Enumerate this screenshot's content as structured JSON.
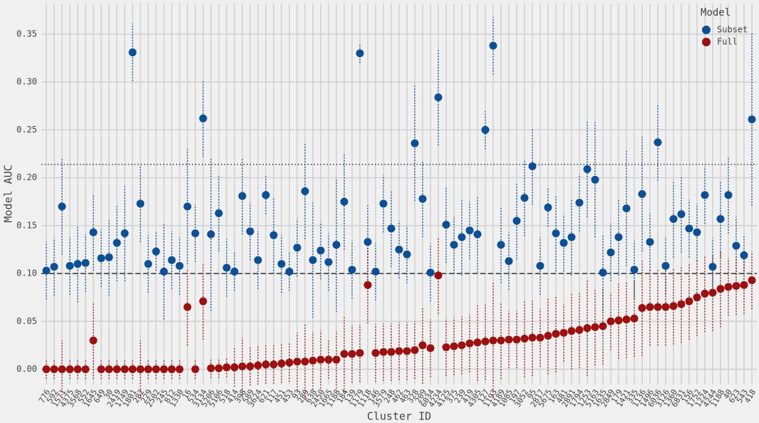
{
  "chart_data": {
    "type": "dot",
    "x_label": "Cluster ID",
    "y_label": "Model AUC",
    "legend_title": "Model",
    "legend_position": "upper right",
    "grid": true,
    "ylim": [
      -0.016,
      0.382
    ],
    "yticks": [
      {
        "value": 0,
        "label": "0.00"
      },
      {
        "value": 0.05,
        "label": "0.05"
      },
      {
        "value": 0.1,
        "label": "0.10"
      },
      {
        "value": 0.15,
        "label": "0.15"
      },
      {
        "value": 0.2,
        "label": "0.20"
      },
      {
        "value": 0.25,
        "label": "0.25"
      },
      {
        "value": 0.3,
        "label": "0.30"
      },
      {
        "value": 0.35,
        "label": "0.35"
      }
    ],
    "hlines": [
      {
        "value": 0.214,
        "style": "dotted"
      },
      {
        "value": 0.1,
        "style": "dashed"
      }
    ],
    "categories": [
      "776",
      "592",
      "1571",
      "4375",
      "3568",
      "552",
      "1645",
      "649",
      "30",
      "2419",
      "1749",
      "1801",
      "282",
      "229",
      "2502",
      "245",
      "812",
      "1330",
      "16",
      "534",
      "3134",
      "5206",
      "5106",
      "518",
      "414",
      "398",
      "589",
      "3624",
      "621",
      "117",
      "451",
      "453",
      "93",
      "289",
      "638",
      "2450",
      "1665",
      "1188",
      "184",
      "139",
      "1179",
      "1118",
      "146",
      "3579",
      "248",
      "462",
      "463",
      "328",
      "209",
      "6034",
      "4234",
      "4125",
      "375",
      "239",
      "419",
      "4305",
      "127",
      "1193",
      "4189",
      "1085",
      "197",
      "3052",
      "95",
      "2817",
      "5675",
      "163",
      "481",
      "2891",
      "1794",
      "1253",
      "5163",
      "1635",
      "2849",
      "179",
      "1421",
      "335",
      "1136",
      "1496",
      "6036",
      "3126",
      "1360",
      "6831",
      "156",
      "1752",
      "1224",
      "4244",
      "1188",
      "40",
      "623",
      "543",
      "418"
    ],
    "series": [
      {
        "name": "Subset",
        "color": "#0d4f94",
        "values": [
          0.103,
          0.107,
          0.17,
          0.108,
          0.11,
          0.111,
          0.143,
          0.116,
          0.117,
          0.132,
          0.142,
          0.331,
          0.173,
          0.11,
          0.123,
          0.102,
          0.114,
          0.108,
          0.17,
          0.142,
          0.262,
          0.141,
          0.163,
          0.106,
          0.102,
          0.181,
          0.144,
          0.114,
          0.182,
          0.14,
          0.11,
          0.102,
          0.127,
          0.186,
          0.114,
          0.124,
          0.112,
          0.13,
          0.175,
          0.104,
          0.33,
          0.133,
          0.102,
          0.173,
          0.147,
          0.125,
          0.12,
          0.236,
          0.178,
          0.101,
          0.284,
          0.151,
          0.13,
          0.138,
          0.145,
          0.141,
          0.25,
          0.338,
          0.13,
          0.113,
          0.155,
          0.179,
          0.212,
          0.108,
          0.169,
          0.142,
          0.132,
          0.138,
          0.174,
          0.209,
          0.198,
          0.101,
          0.122,
          0.138,
          0.168,
          0.104,
          0.183,
          0.133,
          0.237,
          0.108,
          0.157,
          0.162,
          0.147,
          0.143,
          0.182,
          0.107,
          0.157,
          0.182,
          0.129,
          0.119,
          0.261
        ],
        "errors": [
          0.03,
          0.03,
          0.05,
          0.03,
          0.04,
          0.03,
          0.04,
          0.03,
          0.04,
          0.04,
          0.05,
          0.03,
          0.04,
          0.03,
          0.02,
          0.05,
          0.03,
          0.03,
          0.06,
          0.03,
          0.04,
          0.08,
          0.04,
          0.03,
          0.02,
          0.04,
          0.03,
          0.03,
          0.02,
          0.04,
          0.03,
          0.02,
          0.03,
          0.05,
          0.06,
          0.03,
          0.03,
          0.07,
          0.05,
          0.03,
          0.01,
          0.04,
          0.03,
          0.03,
          0.04,
          0.03,
          0.03,
          0.06,
          0.04,
          0.03,
          0.05,
          0.04,
          0.03,
          0.04,
          0.03,
          0.04,
          0.02,
          0.03,
          0.04,
          0.03,
          0.04,
          0.04,
          0.04,
          0.03,
          0.02,
          0.04,
          0.03,
          0.04,
          0.03,
          0.05,
          0.06,
          0.04,
          0.03,
          0.04,
          0.06,
          0.03,
          0.06,
          0.03,
          0.04,
          0.03,
          0.04,
          0.04,
          0.03,
          0.03,
          0.03,
          0.03,
          0.04,
          0.04,
          0.03,
          0.02,
          0.09
        ]
      },
      {
        "name": "Full",
        "color": "#9b1010",
        "values": [
          0,
          0,
          0,
          0,
          0,
          0,
          0.03,
          0,
          0,
          0,
          0,
          0,
          0,
          0,
          0,
          0,
          0,
          0,
          0.065,
          0,
          0.071,
          0.001,
          0.001,
          0.002,
          0.002,
          0.003,
          0.003,
          0.004,
          0.005,
          0.005,
          0.006,
          0.007,
          0.008,
          0.008,
          0.009,
          0.01,
          0.01,
          0.01,
          0.016,
          0.016,
          0.017,
          0.088,
          0.017,
          0.018,
          0.018,
          0.019,
          0.019,
          0.02,
          0.025,
          0.022,
          0.098,
          0.023,
          0.024,
          0.025,
          0.027,
          0.028,
          0.029,
          0.03,
          0.03,
          0.031,
          0.031,
          0.032,
          0.033,
          0.033,
          0.035,
          0.037,
          0.038,
          0.04,
          0.041,
          0.043,
          0.044,
          0.045,
          0.05,
          0.051,
          0.052,
          0.053,
          0.064,
          0.065,
          0.065,
          0.065,
          0.066,
          0.068,
          0.071,
          0.075,
          0.079,
          0.08,
          0.084,
          0.086,
          0.087,
          0.088,
          0.093
        ],
        "errors": [
          0.01,
          0.01,
          0.03,
          0.01,
          0.01,
          0.01,
          0.04,
          0.01,
          0.01,
          0.01,
          0.01,
          0.01,
          0.03,
          0.01,
          0.01,
          0.01,
          0.01,
          0.01,
          0.04,
          0.01,
          0.04,
          0.01,
          0.01,
          0.01,
          0.02,
          0.03,
          0.02,
          0.02,
          0.02,
          0.02,
          0.02,
          0.02,
          0.03,
          0.04,
          0.03,
          0.03,
          0.02,
          0.03,
          0.04,
          0.03,
          0.03,
          0.04,
          0.03,
          0.03,
          0.03,
          0.03,
          0.03,
          0.03,
          0.04,
          0.03,
          0.04,
          0.03,
          0.03,
          0.03,
          0.03,
          0.04,
          0.04,
          0.06,
          0.04,
          0.03,
          0.03,
          0.04,
          0.04,
          0.03,
          0.04,
          0.04,
          0.03,
          0.04,
          0.04,
          0.05,
          0.04,
          0.04,
          0.03,
          0.04,
          0.04,
          0.04,
          0.05,
          0.04,
          0.04,
          0.04,
          0.04,
          0.04,
          0.04,
          0.04,
          0.04,
          0.04,
          0.04,
          0.03,
          0.03,
          0.03,
          0.03
        ]
      }
    ]
  }
}
